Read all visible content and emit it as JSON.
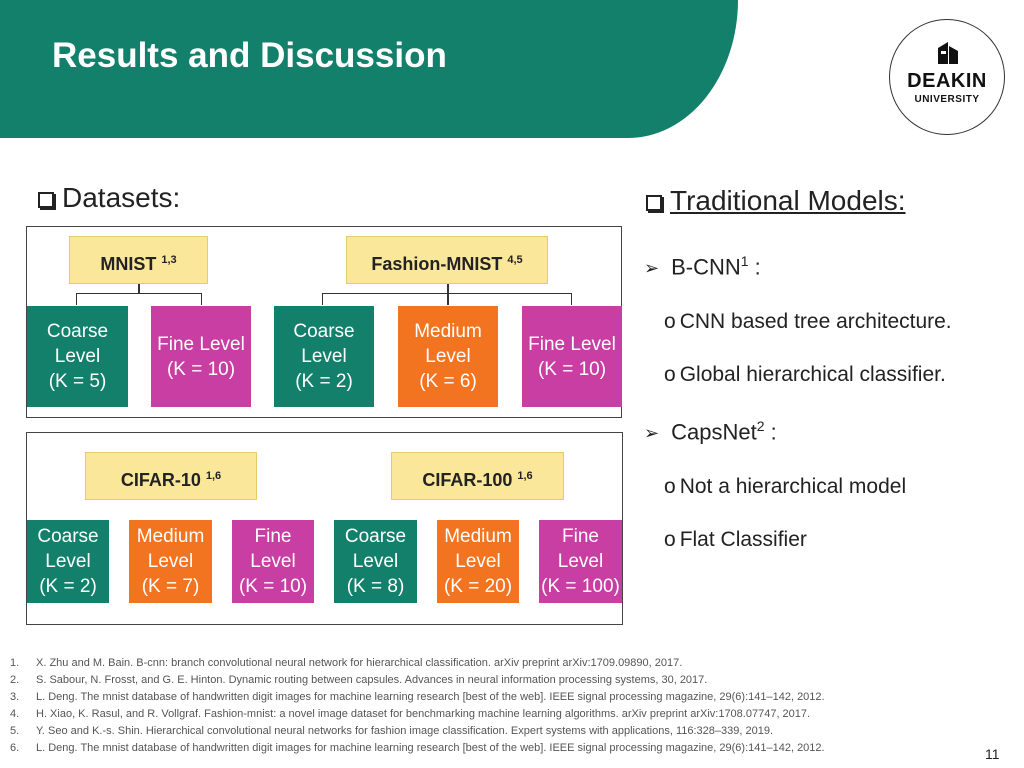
{
  "header": {
    "title": "Results and Discussion"
  },
  "logo": {
    "name": "DEAKIN",
    "sub": "UNIVERSITY"
  },
  "datasets": {
    "heading": "Datasets:",
    "mnist": {
      "name": "MNIST",
      "refs": "1,3"
    },
    "fashion": {
      "name": "Fashion-MNIST",
      "refs": "4,5"
    },
    "cifar10": {
      "name": "CIFAR-10",
      "refs": "1,6"
    },
    "cifar100": {
      "name": "CIFAR-100",
      "refs": "1,6"
    },
    "mnist_levels": [
      {
        "l1": "Coarse",
        "l2": "Level",
        "l3": "(K = 5)"
      },
      {
        "l1": "Fine Level",
        "l2": "(K = 10)"
      }
    ],
    "fashion_levels": [
      {
        "l1": "Coarse",
        "l2": "Level",
        "l3": "(K = 2)"
      },
      {
        "l1": "Medium",
        "l2": "Level",
        "l3": "(K = 6)"
      },
      {
        "l1": "Fine Level",
        "l2": "(K = 10)"
      }
    ],
    "cifar10_levels": [
      {
        "l1": "Coarse",
        "l2": "Level",
        "l3": "(K = 2)"
      },
      {
        "l1": "Medium",
        "l2": "Level",
        "l3": "(K = 7)"
      },
      {
        "l1": "Fine",
        "l2": "Level",
        "l3": "(K = 10)"
      }
    ],
    "cifar100_levels": [
      {
        "l1": "Coarse",
        "l2": "Level",
        "l3": "(K = 8)"
      },
      {
        "l1": "Medium",
        "l2": "Level",
        "l3": "(K = 20)"
      },
      {
        "l1": "Fine",
        "l2": "Level",
        "l3": "(K = 100)"
      }
    ]
  },
  "models": {
    "heading": "Traditional Models:",
    "bcnn": {
      "name": "B-CNN",
      "ref": "1",
      "suffix": " :",
      "points": [
        "CNN based tree architecture.",
        "Global hierarchical classifier."
      ]
    },
    "capsnet": {
      "name": "CapsNet",
      "ref": "2",
      "suffix": " :",
      "points": [
        "Not a hierarchical model",
        "Flat Classifier"
      ]
    }
  },
  "references": [
    {
      "num": "1.",
      "text": "X. Zhu and M. Bain. B-cnn: branch convolutional neural network for hierarchical classification. arXiv preprint arXiv:1709.09890, 2017."
    },
    {
      "num": "2.",
      "text": "S. Sabour, N. Frosst, and G. E. Hinton. Dynamic routing between capsules. Advances in neural information processing systems, 30, 2017."
    },
    {
      "num": "3.",
      "text": "L. Deng. The mnist database of handwritten digit images for machine learning research [best of the web]. IEEE signal processing magazine, 29(6):141–142, 2012."
    },
    {
      "num": "4.",
      "text": "H. Xiao, K. Rasul, and R. Vollgraf. Fashion-mnist: a novel image dataset for benchmarking machine learning algorithms. arXiv preprint arXiv:1708.07747, 2017."
    },
    {
      "num": "5.",
      "text": "Y. Seo and K.-s. Shin. Hierarchical convolutional neural networks for fashion image classification. Expert systems with applications, 116:328–339, 2019."
    },
    {
      "num": "6.",
      "text": "L. Deng. The mnist database of handwritten digit images for machine learning research [best of the web]. IEEE signal processing magazine, 29(6):141–142, 2012."
    }
  ],
  "page_number": "11"
}
